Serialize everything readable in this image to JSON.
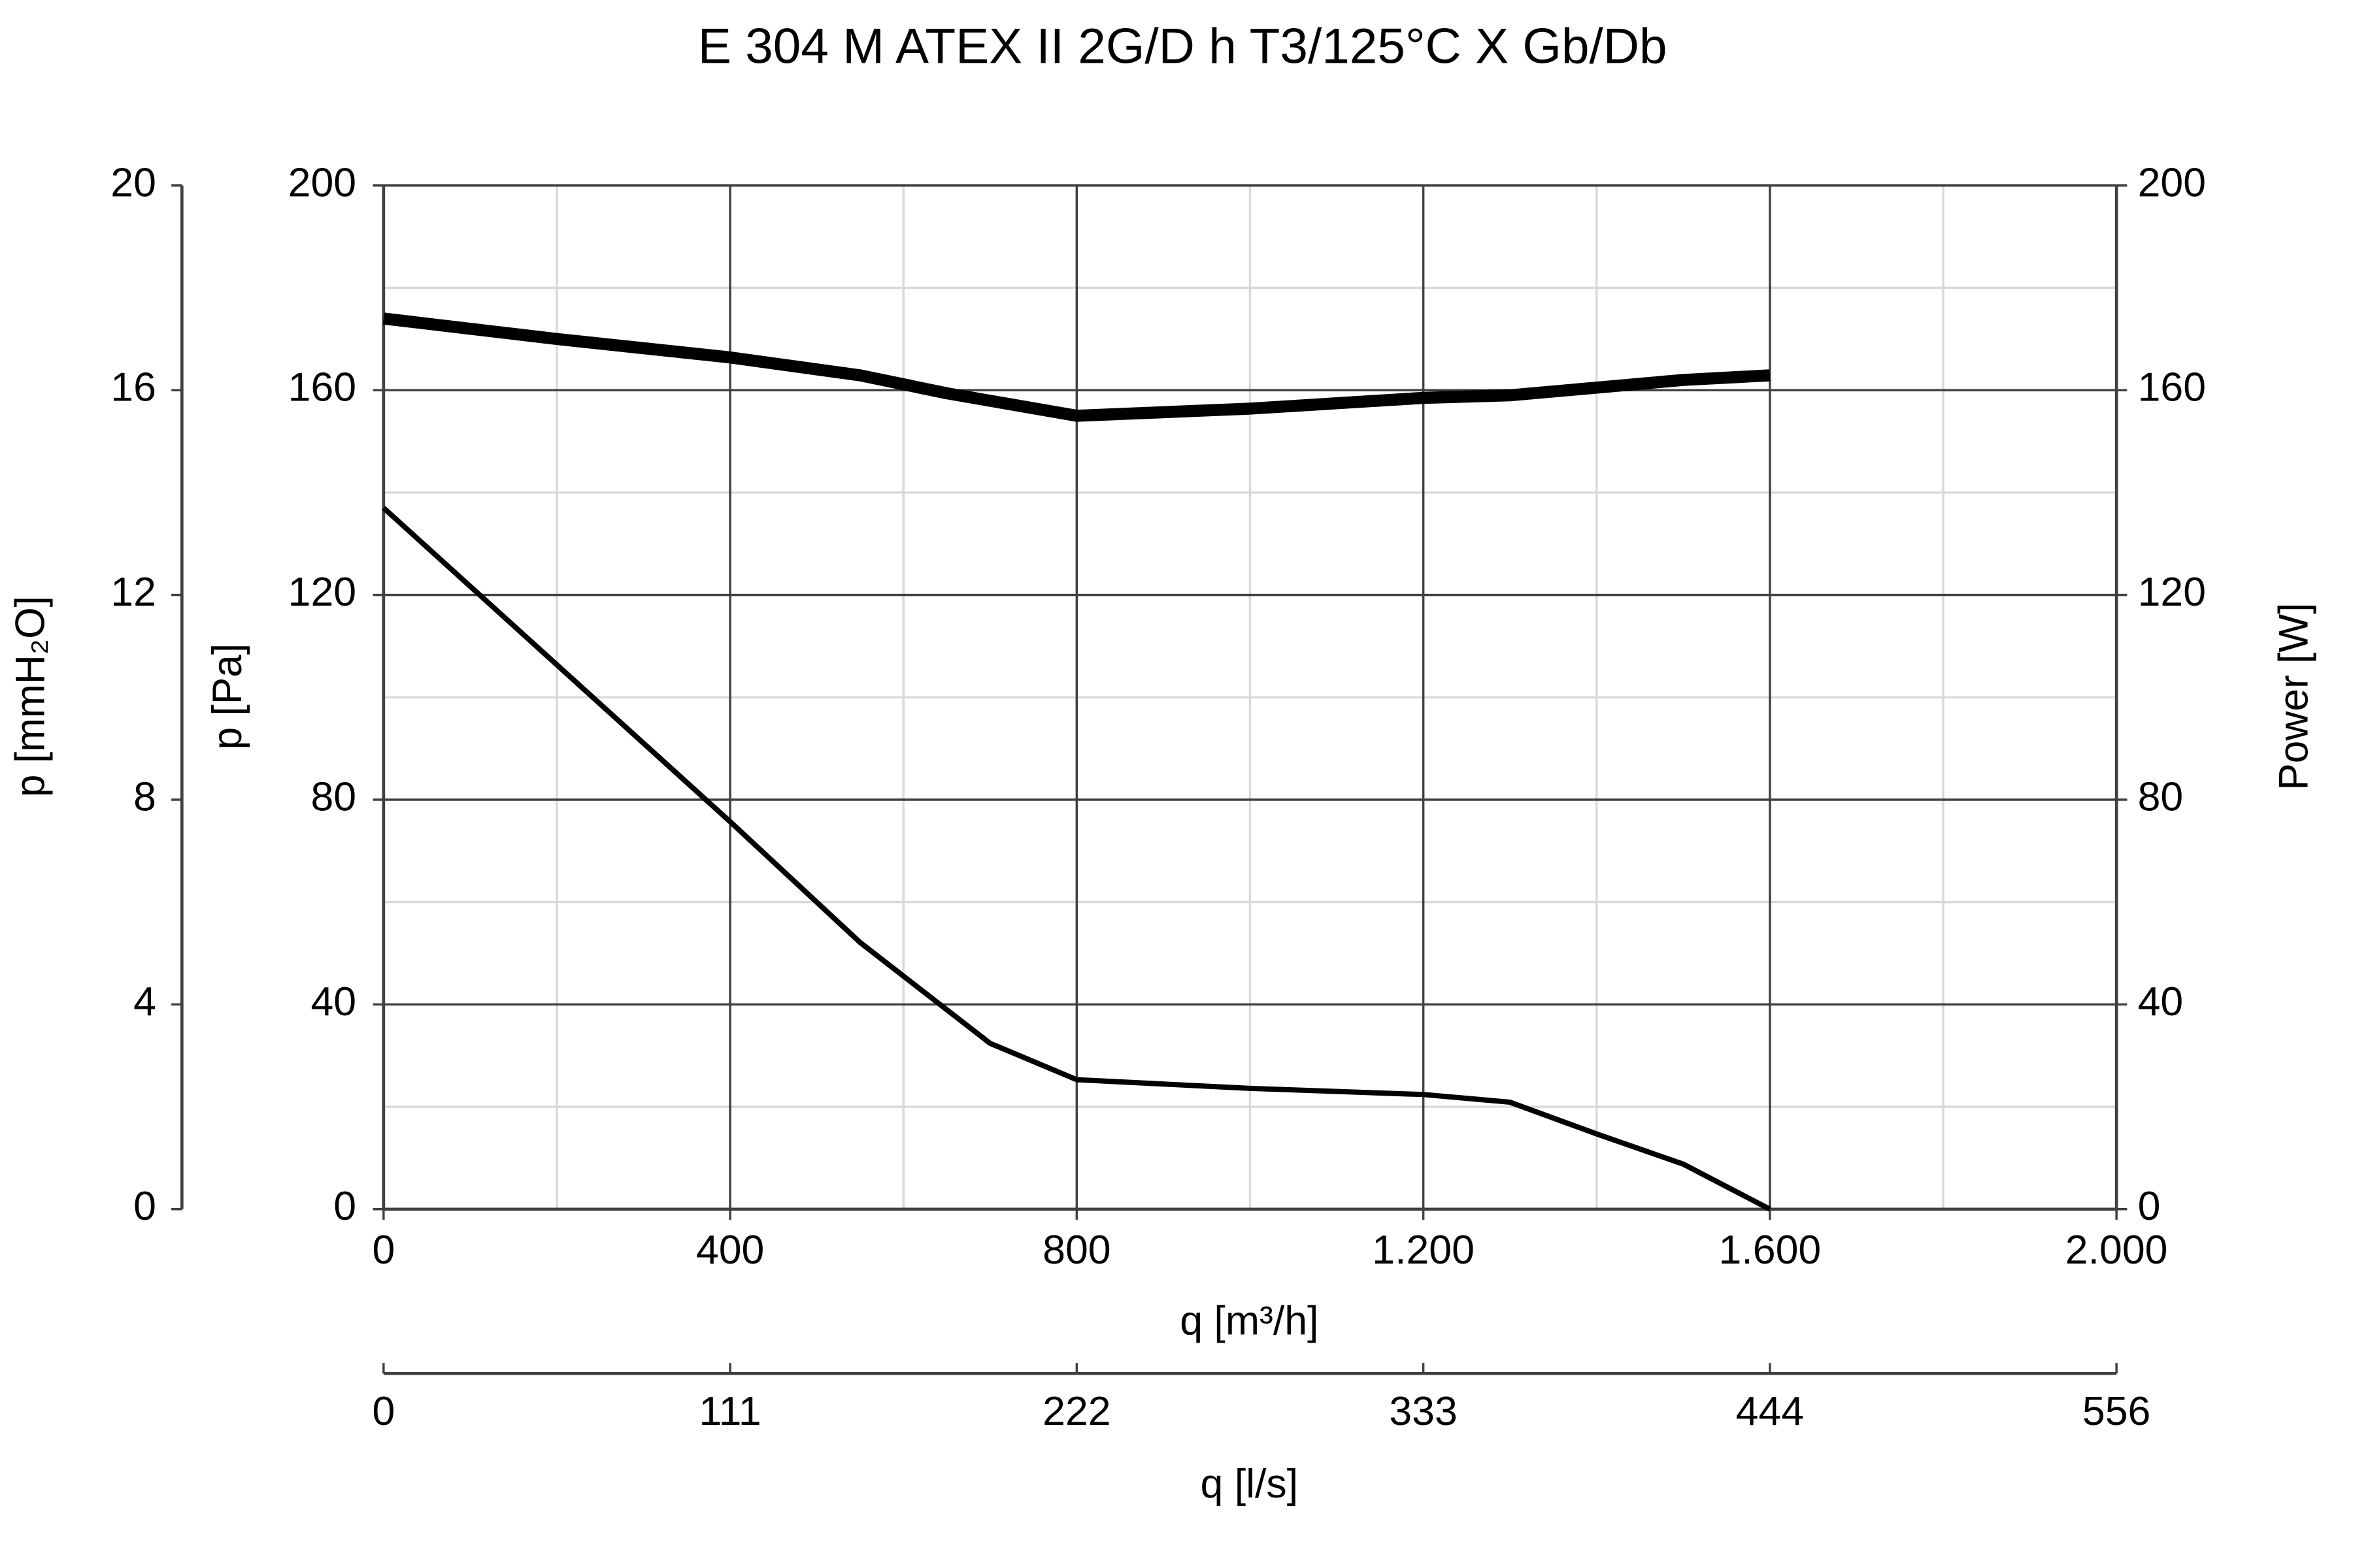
{
  "chart_data": {
    "type": "line",
    "title": "E 304 M ATEX II 2G/D h T3/125°C X Gb/Db",
    "xlabel": "q [m³/h]",
    "ylabel": "p [Pa]",
    "y2label": "Power [W]",
    "y3label": "p [mmH₂O]",
    "x2label": "q [l/s]",
    "xlim": [
      0,
      2000
    ],
    "xticks": [
      0,
      400,
      800,
      {
        "value": 1200,
        "label": "1.200"
      },
      {
        "value": 1600,
        "label": "1.600"
      },
      {
        "value": 2000,
        "label": "2.000"
      }
    ],
    "xminor": [
      200,
      600,
      1000,
      1400,
      1800
    ],
    "ylim": [
      0,
      200
    ],
    "yticks": [
      0,
      40,
      80,
      120,
      160,
      200
    ],
    "yminor": [
      20,
      60,
      100,
      140,
      180
    ],
    "y2lim": [
      0,
      200
    ],
    "y2ticks": [
      0,
      40,
      80,
      120,
      160,
      200
    ],
    "y3lim": [
      0,
      20
    ],
    "y3ticks": [
      0,
      4,
      8,
      12,
      16,
      20
    ],
    "x2lim": [
      0,
      555.56
    ],
    "x2ticks": [
      0,
      {
        "value": 111.11,
        "label": "111"
      },
      {
        "value": 222.22,
        "label": "222"
      },
      {
        "value": 333.33,
        "label": "333"
      },
      {
        "value": 444.44,
        "label": "444"
      },
      {
        "value": 555.56,
        "label": "556"
      }
    ],
    "grid": true,
    "series": [
      {
        "color": "#000000",
        "axis": "y2",
        "x": [
          0,
          200,
          400,
          550,
          650,
          800,
          1000,
          1200,
          1300,
          1400,
          1500,
          1600
        ],
        "values": [
          174,
          170,
          166.4,
          162.9,
          159.4,
          155,
          156.4,
          158.5,
          159,
          160.5,
          162,
          162.9
        ]
      },
      {
        "color": "#000000",
        "x": [
          0,
          400,
          550,
          700,
          800,
          1000,
          1200,
          1300,
          1400,
          1500,
          1600
        ],
        "values": [
          137,
          75.7,
          52.1,
          32.4,
          25.3,
          23.6,
          22.4,
          20.9,
          14.7,
          8.8,
          0
        ]
      }
    ]
  }
}
